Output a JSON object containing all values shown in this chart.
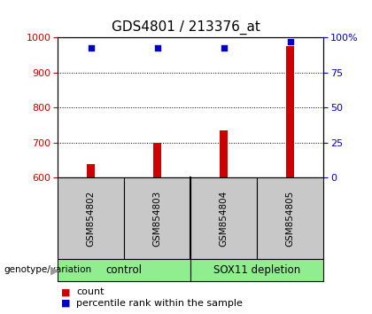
{
  "title": "GDS4801 / 213376_at",
  "samples": [
    "GSM854802",
    "GSM854803",
    "GSM854804",
    "GSM854805"
  ],
  "counts": [
    637,
    700,
    735,
    975
  ],
  "percentiles": [
    93,
    93,
    93,
    97
  ],
  "ylim_left": [
    600,
    1000
  ],
  "ylim_right": [
    0,
    100
  ],
  "yticks_left": [
    600,
    700,
    800,
    900,
    1000
  ],
  "yticks_right": [
    0,
    25,
    50,
    75,
    100
  ],
  "ytick_labels_right": [
    "0",
    "25",
    "50",
    "75",
    "100%"
  ],
  "bar_color": "#cc0000",
  "scatter_color": "#0000cc",
  "bar_width": 0.12,
  "plot_bg": "#ffffff",
  "label_area_bg": "#c8c8c8",
  "group_bg": "#90EE90",
  "legend_count_color": "#cc0000",
  "legend_pct_color": "#0000cc",
  "grid_yticks": [
    700,
    800,
    900
  ],
  "title_fontsize": 11,
  "tick_fontsize": 8,
  "sample_fontsize": 7.5,
  "group_fontsize": 8.5,
  "legend_fontsize": 8
}
